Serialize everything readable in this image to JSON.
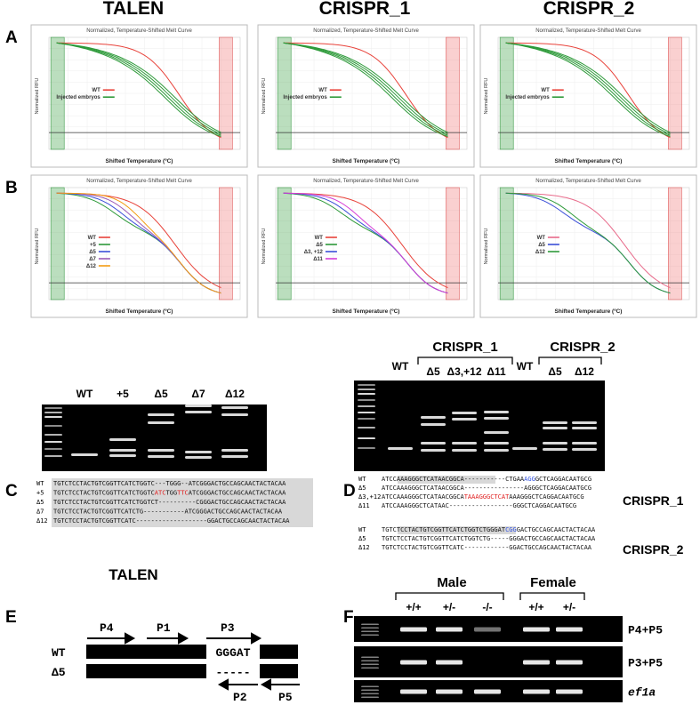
{
  "columns": [
    "TALEN",
    "CRISPR_1",
    "CRISPR_2"
  ],
  "panel_labels": [
    "A",
    "B",
    "C",
    "D",
    "E",
    "F"
  ],
  "melt_curves": {
    "title": "Normalized, Temperature-Shifted Melt Curve",
    "y_label": "Normalized RFU",
    "x_label": "Shifted Temperature (ºC)",
    "row_A_legends": [
      [
        {
          "name": "WT",
          "color": "#e8423a"
        },
        {
          "name": "Injected embryos",
          "color": "#2e9a3a"
        }
      ],
      [
        {
          "name": "WT",
          "color": "#e8423a"
        },
        {
          "name": "Injected embryos",
          "color": "#2e9a3a"
        }
      ],
      [
        {
          "name": "WT",
          "color": "#e8423a"
        },
        {
          "name": "Injected embryos",
          "color": "#2e9a3a"
        }
      ]
    ],
    "row_B_legends": [
      [
        {
          "name": "WT",
          "color": "#e8423a"
        },
        {
          "name": "+5",
          "color": "#2e9a3a"
        },
        {
          "name": "Δ5",
          "color": "#3b4fd8"
        },
        {
          "name": "Δ7",
          "color": "#9b59b6"
        },
        {
          "name": "Δ12",
          "color": "#f39c12"
        }
      ],
      [
        {
          "name": "WT",
          "color": "#e8423a"
        },
        {
          "name": "Δ5",
          "color": "#2e9a3a"
        },
        {
          "name": "Δ3, +12",
          "color": "#3b4fd8"
        },
        {
          "name": "Δ11",
          "color": "#d63cd6"
        }
      ],
      [
        {
          "name": "WT",
          "color": "#e86a8a"
        },
        {
          "name": "Δ5",
          "color": "#3b4fd8"
        },
        {
          "name": "Δ12",
          "color": "#2e9a3a"
        }
      ]
    ]
  },
  "gel_C": {
    "lanes": [
      "WT",
      "+5",
      "Δ5",
      "Δ7",
      "Δ12"
    ],
    "caption": "TALEN",
    "sequences": [
      {
        "label": "WT",
        "segments": [
          {
            "text": "TGTCTCCTACTGTCGGTTCATCTGGTC---TGGG--ATCGGGACTGCCAGCAACTACTACAA"
          }
        ]
      },
      {
        "label": "+5",
        "segments": [
          {
            "text": "TGTCTCCTACTGTCGGTTCATCTGGTC"
          },
          {
            "text": "ATC",
            "color": "#e02020"
          },
          {
            "text": "TGG"
          },
          {
            "text": "TTC",
            "color": "#e02020"
          },
          {
            "text": "ATCGGGACTGCCAGCAACTACTACAA"
          }
        ]
      },
      {
        "label": "Δ5",
        "segments": [
          {
            "text": "TGTCTCCTACTGTCGGTTCATCTGGTCT----------CGGGACTGCCAGCAACTACTACAA"
          }
        ]
      },
      {
        "label": "Δ7",
        "segments": [
          {
            "text": "TGTCTCCTACTGTCGGTTCATCTG-----------ATCGGGACTGCCAGCAACTACTACAA"
          }
        ]
      },
      {
        "label": "Δ12",
        "segments": [
          {
            "text": "TGTCTCCTACTGTCGGTTCATC-------------------GGACTGCCAGCAACTACTACAA"
          }
        ]
      }
    ]
  },
  "gel_D": {
    "groups": [
      "CRISPR_1",
      "CRISPR_2"
    ],
    "lanes": [
      "WT",
      "Δ5",
      "Δ3,+12",
      "Δ11",
      "WT",
      "Δ5",
      "Δ12"
    ],
    "crispr_1_label": "CRISPR_1",
    "crispr_2_label": "CRISPR_2",
    "crispr_1_sequences": [
      {
        "label": "WT",
        "segments": [
          {
            "text": "ATCCAAAGGGCTCATAACGGCA-----------CTGAA"
          },
          {
            "text": "AGG",
            "color": "#3050e0"
          },
          {
            "text": "GCTCAGGACAATGCG"
          }
        ]
      },
      {
        "label": "Δ5",
        "segments": [
          {
            "text": "ATCCAAAGGGCTCATAACGGCA----------------AGGGCTCAGGACAATGCG"
          }
        ]
      },
      {
        "label": "Δ3,+12",
        "segments": [
          {
            "text": "ATCCAAAGGGCTCATAACGGCA"
          },
          {
            "text": "TAAAGGGCTCAT",
            "color": "#e02020"
          },
          {
            "text": "AAAGGGCTCAGGACAATGCG"
          }
        ]
      },
      {
        "label": "Δ11",
        "segments": [
          {
            "text": "ATCCAAAGGGCTCATAAC-----------------GGGCTCAGGACAATGCG"
          }
        ]
      }
    ],
    "crispr_2_sequences": [
      {
        "label": "WT",
        "segments": [
          {
            "text": "TGTCTCCTACTGTCGGTTCATCTGGTCTGGGAT"
          },
          {
            "text": "CGG",
            "color": "#3050e0"
          },
          {
            "text": "GACTGCCAGCAACTACTACAA"
          }
        ]
      },
      {
        "label": "Δ5",
        "segments": [
          {
            "text": "TGTCTCCTACTGTCGGTTCATCTGGTCTG-----GGGACTGCCAGCAACTACTACAA"
          }
        ]
      },
      {
        "label": "Δ12",
        "segments": [
          {
            "text": "TGTCTCCTACTGTCGGTTCATC------------GGACTGCCAGCAACTACTACAA"
          }
        ]
      }
    ]
  },
  "diagram_E": {
    "primers_forward": [
      "P4",
      "P1",
      "P3"
    ],
    "primers_reverse": [
      "P2",
      "P5"
    ],
    "alleles": [
      "WT",
      "Δ5"
    ],
    "wt_insert": "GGGAT",
    "del_insert": "-----"
  },
  "gel_F": {
    "groups": [
      "Male",
      "Female"
    ],
    "lanes": [
      "+/+",
      "+/-",
      "-/-",
      "+/+",
      "+/-"
    ],
    "rows": [
      "P4+P5",
      "P3+P5",
      "ef1a"
    ]
  }
}
